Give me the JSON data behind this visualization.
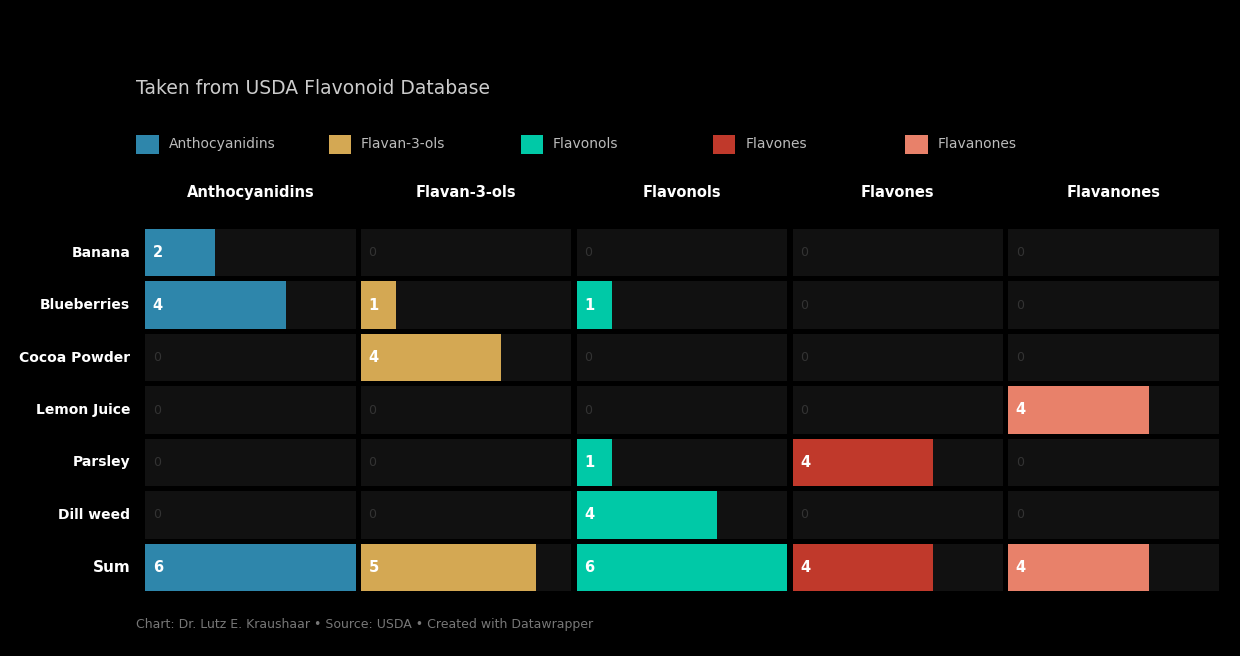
{
  "title": "Taken from USDA Flavonoid Database",
  "subtitle": "Chart: Dr. Lutz E. Kraushaar • Source: USDA • Created with Datawrapper",
  "background_color": "#000000",
  "cell_bg_color": "#111111",
  "text_color": "#ffffff",
  "dim_text_color": "#444444",
  "flavonoid_types": [
    "Anthocyanidins",
    "Flavan-3-ols",
    "Flavonols",
    "Flavones",
    "Flavanones"
  ],
  "flavonoid_colors": [
    "#2e86ab",
    "#d4a853",
    "#00c9a7",
    "#c0392b",
    "#e8816a"
  ],
  "fruits": [
    "Banana",
    "Blueberries",
    "Cocoa Powder",
    "Lemon Juice",
    "Parsley",
    "Dill weed",
    "Sum"
  ],
  "data": {
    "Anthocyanidins": [
      2,
      4,
      0,
      0,
      0,
      0,
      6
    ],
    "Flavan-3-ols": [
      0,
      1,
      4,
      0,
      0,
      0,
      5
    ],
    "Flavonols": [
      0,
      1,
      0,
      0,
      1,
      4,
      6
    ],
    "Flavones": [
      0,
      0,
      0,
      0,
      4,
      0,
      4
    ],
    "Flavanones": [
      0,
      0,
      0,
      4,
      0,
      0,
      4
    ]
  },
  "cell_max": 6,
  "legend_labels": [
    "Anthocyanidins",
    "Flavan-3-ols",
    "Flavonols",
    "Flavones",
    "Flavanones"
  ]
}
